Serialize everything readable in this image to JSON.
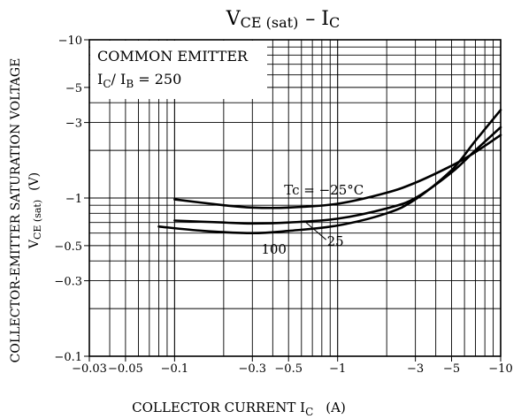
{
  "chart_data": {
    "type": "line",
    "title": {
      "main": "V",
      "sub": "CE (sat)",
      "rest": "– I",
      "sub2": "C"
    },
    "xlabel": {
      "text": "COLLECTOR CURRENT  I",
      "sub": "C",
      "unit": "(A)"
    },
    "ylabel": {
      "line1": "COLLECTOR-EMITTER SATURATION VOLTAGE",
      "line2_main": "V",
      "line2_sub": "CE (sat)",
      "line2_unit": "(V)"
    },
    "x_scale": "log",
    "y_scale": "log",
    "xlim": [
      -0.03,
      -10
    ],
    "ylim": [
      -0.1,
      -10
    ],
    "x_ticks": [
      {
        "value": -0.03,
        "label": "−0.03"
      },
      {
        "value": -0.05,
        "label": "−0.05"
      },
      {
        "value": -0.1,
        "label": "−0.1"
      },
      {
        "value": -0.3,
        "label": "−0.3"
      },
      {
        "value": -0.5,
        "label": "−0.5"
      },
      {
        "value": -1,
        "label": "−1"
      },
      {
        "value": -3,
        "label": "−3"
      },
      {
        "value": -5,
        "label": "−5"
      },
      {
        "value": -10,
        "label": "−10"
      }
    ],
    "y_ticks": [
      {
        "value": -10,
        "label": "−10"
      },
      {
        "value": -5,
        "label": "−5"
      },
      {
        "value": -3,
        "label": "−3"
      },
      {
        "value": -1,
        "label": "−1"
      },
      {
        "value": -0.5,
        "label": "−0.5"
      },
      {
        "value": -0.3,
        "label": "−0.3"
      },
      {
        "value": -0.1,
        "label": "−0.1"
      }
    ],
    "conditions": {
      "line1": "COMMON EMITTER",
      "line2_main": "I",
      "line2_sub": "C",
      "line2_mid": "/ I",
      "line2_sub2": "B",
      "line2_rest": " = 250"
    },
    "grid": true,
    "series": [
      {
        "name": "Tc = −25°C",
        "x": [
          -0.1,
          -0.2,
          -0.3,
          -0.5,
          -1,
          -2,
          -3,
          -5,
          -7,
          -10
        ],
        "y": [
          -0.98,
          -0.9,
          -0.87,
          -0.87,
          -0.92,
          -1.08,
          -1.25,
          -1.6,
          -1.95,
          -2.5
        ]
      },
      {
        "name": "25",
        "x": [
          -0.1,
          -0.2,
          -0.3,
          -0.5,
          -1,
          -2,
          -3,
          -5,
          -7,
          -10
        ],
        "y": [
          -0.72,
          -0.7,
          -0.69,
          -0.7,
          -0.74,
          -0.86,
          -1.0,
          -1.45,
          -2.0,
          -2.8
        ]
      },
      {
        "name": "100",
        "x": [
          -0.08,
          -0.15,
          -0.3,
          -0.5,
          -1,
          -2,
          -3,
          -5,
          -7,
          -10
        ],
        "y": [
          -0.66,
          -0.62,
          -0.6,
          -0.62,
          -0.67,
          -0.8,
          -0.98,
          -1.5,
          -2.3,
          -3.6
        ]
      }
    ]
  }
}
